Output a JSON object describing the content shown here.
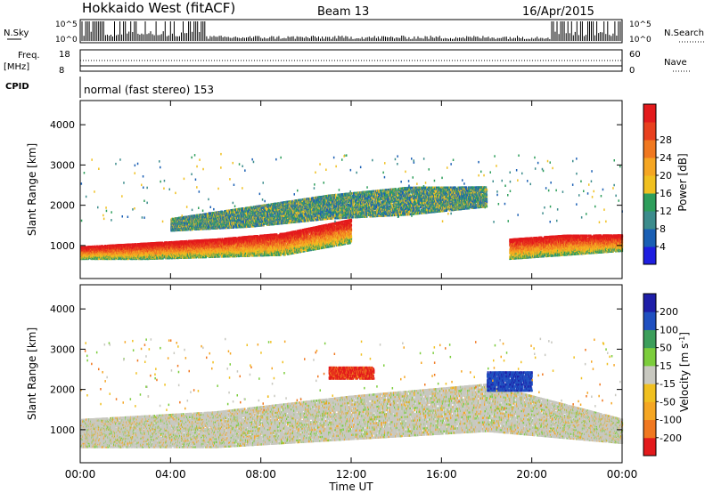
{
  "header": {
    "station": "Hokkaido West (fitACF)",
    "beam": "Beam 13",
    "date": "16/Apr/2015"
  },
  "strips": {
    "nsky_label": "N.Sky",
    "nsky_ticks": [
      "10^5",
      "10^0"
    ],
    "nsearch_label": "N.Search",
    "nsearch_ticks": [
      "10^5",
      "10^0"
    ],
    "freq_label": "Freq.",
    "freq_unit": "[MHz]",
    "freq_ticks": [
      "18",
      "8"
    ],
    "nave_label": "Nave",
    "nave_ticks": [
      "60",
      "0"
    ],
    "cpid_label": "CPID",
    "cpid_text": "normal (fast stereo) 153"
  },
  "power_panel": {
    "ylabel": "Slant Range [km]",
    "yticks": [
      "1000",
      "2000",
      "3000",
      "4000"
    ],
    "colorbar_label": "Power [dB]",
    "colorbar_ticks": [
      "4",
      "8",
      "12",
      "16",
      "20",
      "24",
      "28"
    ],
    "colors": [
      "#1e1ee0",
      "#1a5fb4",
      "#3c8c8c",
      "#2e9e5b",
      "#f0c020",
      "#f5a623",
      "#f07820",
      "#e8401e",
      "#e31a1c"
    ]
  },
  "velocity_panel": {
    "ylabel": "Slant Range [km]",
    "yticks": [
      "1000",
      "2000",
      "3000",
      "4000"
    ],
    "colorbar_label": "Velocity [m s",
    "colorbar_sup": "-1",
    "colorbar_close": "]",
    "colorbar_ticks": [
      "-200",
      "-100",
      "-50",
      "-15",
      "15",
      "50",
      "100",
      "200"
    ],
    "colors": [
      "#e31a1c",
      "#f07820",
      "#f5a623",
      "#f0c020",
      "#c8c8c0",
      "#7ccd3c",
      "#3c9e5b",
      "#2050c0",
      "#1e1ea8"
    ]
  },
  "xaxis": {
    "ticks": [
      "00:00",
      "04:00",
      "08:00",
      "12:00",
      "16:00",
      "20:00",
      "00:00"
    ],
    "label": "Time UT"
  },
  "chart_data": {
    "type": "heatmap",
    "x_range_hours": [
      0,
      24
    ],
    "y_range_km": [
      180,
      4600
    ],
    "power_bands": [
      {
        "name": "low-range band",
        "t0": 0,
        "t1": 12,
        "r_low": [
          700,
          700,
          750,
          800,
          1100
        ],
        "r_high": [
          1000,
          1100,
          1200,
          1350,
          1700
        ],
        "level": "24"
      },
      {
        "name": "mid band",
        "t0": 4,
        "t1": 18,
        "r_low": [
          1400,
          1500,
          1700,
          1800,
          2000
        ],
        "r_high": [
          1700,
          2000,
          2300,
          2500,
          2500
        ],
        "level": "12"
      },
      {
        "name": "late band",
        "t0": 19,
        "t1": 24,
        "r_low": [
          700,
          800,
          900
        ],
        "r_high": [
          1200,
          1300,
          1300
        ],
        "level": "20"
      }
    ],
    "velocity_bands": [
      {
        "name": "ground scatter",
        "t0": 0,
        "t1": 24,
        "r_low": [
          600,
          600,
          800,
          1000,
          700
        ],
        "r_high": [
          1300,
          1500,
          1900,
          2200,
          1300
        ],
        "level": "-15..15"
      },
      {
        "name": "negative patch",
        "t0": 11,
        "t1": 13,
        "r_low": [
          2300
        ],
        "r_high": [
          2600
        ],
        "level": "-200"
      },
      {
        "name": "positive patch",
        "t0": 18,
        "t1": 20,
        "r_low": [
          2000
        ],
        "r_high": [
          2500
        ],
        "level": "200"
      }
    ]
  }
}
